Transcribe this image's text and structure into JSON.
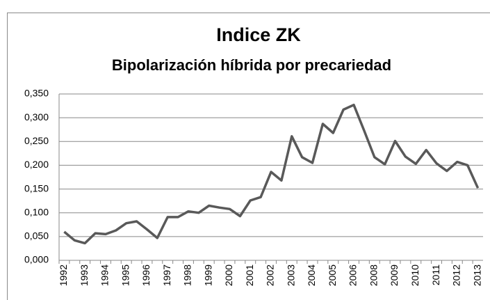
{
  "chart_data": {
    "type": "line",
    "title": "Indice ZK",
    "subtitle": "Bipolarización híbrida por precariedad",
    "categories": [
      "1992",
      null,
      "1993",
      null,
      "1994",
      null,
      "1995",
      null,
      "1996",
      null,
      "1997",
      null,
      "1998",
      null,
      "1999",
      null,
      "2000",
      null,
      "2001",
      null,
      "2002",
      null,
      "2003",
      null,
      "2004",
      null,
      "2005",
      null,
      "2006",
      null,
      "2008",
      null,
      "2009",
      null,
      "2010",
      null,
      "2011",
      null,
      "2012",
      null,
      "2013"
    ],
    "values": [
      0.06,
      0.042,
      0.036,
      0.057,
      0.055,
      0.063,
      0.078,
      0.082,
      0.065,
      0.047,
      0.091,
      0.091,
      0.103,
      0.1,
      0.115,
      0.111,
      0.108,
      0.093,
      0.126,
      0.133,
      0.186,
      0.168,
      0.261,
      0.217,
      0.205,
      0.287,
      0.268,
      0.317,
      0.327,
      0.273,
      0.217,
      0.202,
      0.251,
      0.218,
      0.203,
      0.232,
      0.204,
      0.188,
      0.207,
      0.2,
      0.152
    ],
    "color": "#595959",
    "ylim": [
      0,
      0.35
    ],
    "yticks": [
      {
        "value": 0,
        "label": "0,000"
      },
      {
        "value": 0.05,
        "label": "0,050"
      },
      {
        "value": 0.1,
        "label": "0,100"
      },
      {
        "value": 0.15,
        "label": "0,150"
      },
      {
        "value": 0.2,
        "label": "0,200"
      },
      {
        "value": 0.25,
        "label": "0,250"
      },
      {
        "value": 0.3,
        "label": "0,300"
      },
      {
        "value": 0.35,
        "label": "0,350"
      }
    ],
    "grid": true
  }
}
